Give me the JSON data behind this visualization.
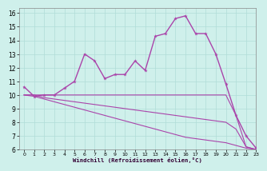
{
  "x": [
    0,
    1,
    2,
    3,
    4,
    5,
    6,
    7,
    8,
    9,
    10,
    11,
    12,
    13,
    14,
    15,
    16,
    17,
    18,
    19,
    20,
    21,
    22,
    23
  ],
  "curve_main": [
    10.6,
    9.9,
    10.0,
    10.0,
    10.5,
    11.0,
    13.0,
    12.5,
    11.2,
    11.5,
    11.5,
    12.5,
    11.8,
    14.3,
    14.5,
    15.6,
    15.8,
    14.5,
    14.5,
    13.0,
    10.8,
    8.5,
    7.0,
    6.1
  ],
  "curve_flat1": [
    10.0,
    10.0,
    10.0,
    10.0,
    10.0,
    10.0,
    10.0,
    10.0,
    10.0,
    10.0,
    10.0,
    10.0,
    10.0,
    10.0,
    10.0,
    10.0,
    10.0,
    10.0,
    10.0,
    10.0,
    10.0,
    8.5,
    6.2,
    6.0
  ],
  "curve_flat2": [
    10.0,
    10.0,
    9.8,
    9.7,
    9.6,
    9.5,
    9.4,
    9.3,
    9.2,
    9.1,
    9.0,
    8.9,
    8.8,
    8.7,
    8.6,
    8.5,
    8.4,
    8.3,
    8.2,
    8.1,
    8.0,
    7.5,
    6.2,
    6.0
  ],
  "curve_flat3": [
    10.0,
    9.9,
    9.7,
    9.5,
    9.3,
    9.1,
    8.9,
    8.7,
    8.5,
    8.3,
    8.1,
    7.9,
    7.7,
    7.5,
    7.3,
    7.1,
    6.9,
    6.8,
    6.7,
    6.6,
    6.5,
    6.3,
    6.1,
    6.0
  ],
  "background_color": "#cff0eb",
  "grid_color": "#b0ddd8",
  "line_color": "#aa44aa",
  "xlabel": "Windchill (Refroidissement éolien,°C)",
  "xlim": [
    -0.5,
    23
  ],
  "ylim": [
    6,
    16.4
  ],
  "yticks": [
    6,
    7,
    8,
    9,
    10,
    11,
    12,
    13,
    14,
    15,
    16
  ],
  "xticks": [
    0,
    1,
    2,
    3,
    4,
    5,
    6,
    7,
    8,
    9,
    10,
    11,
    12,
    13,
    14,
    15,
    16,
    17,
    18,
    19,
    20,
    21,
    22,
    23
  ]
}
